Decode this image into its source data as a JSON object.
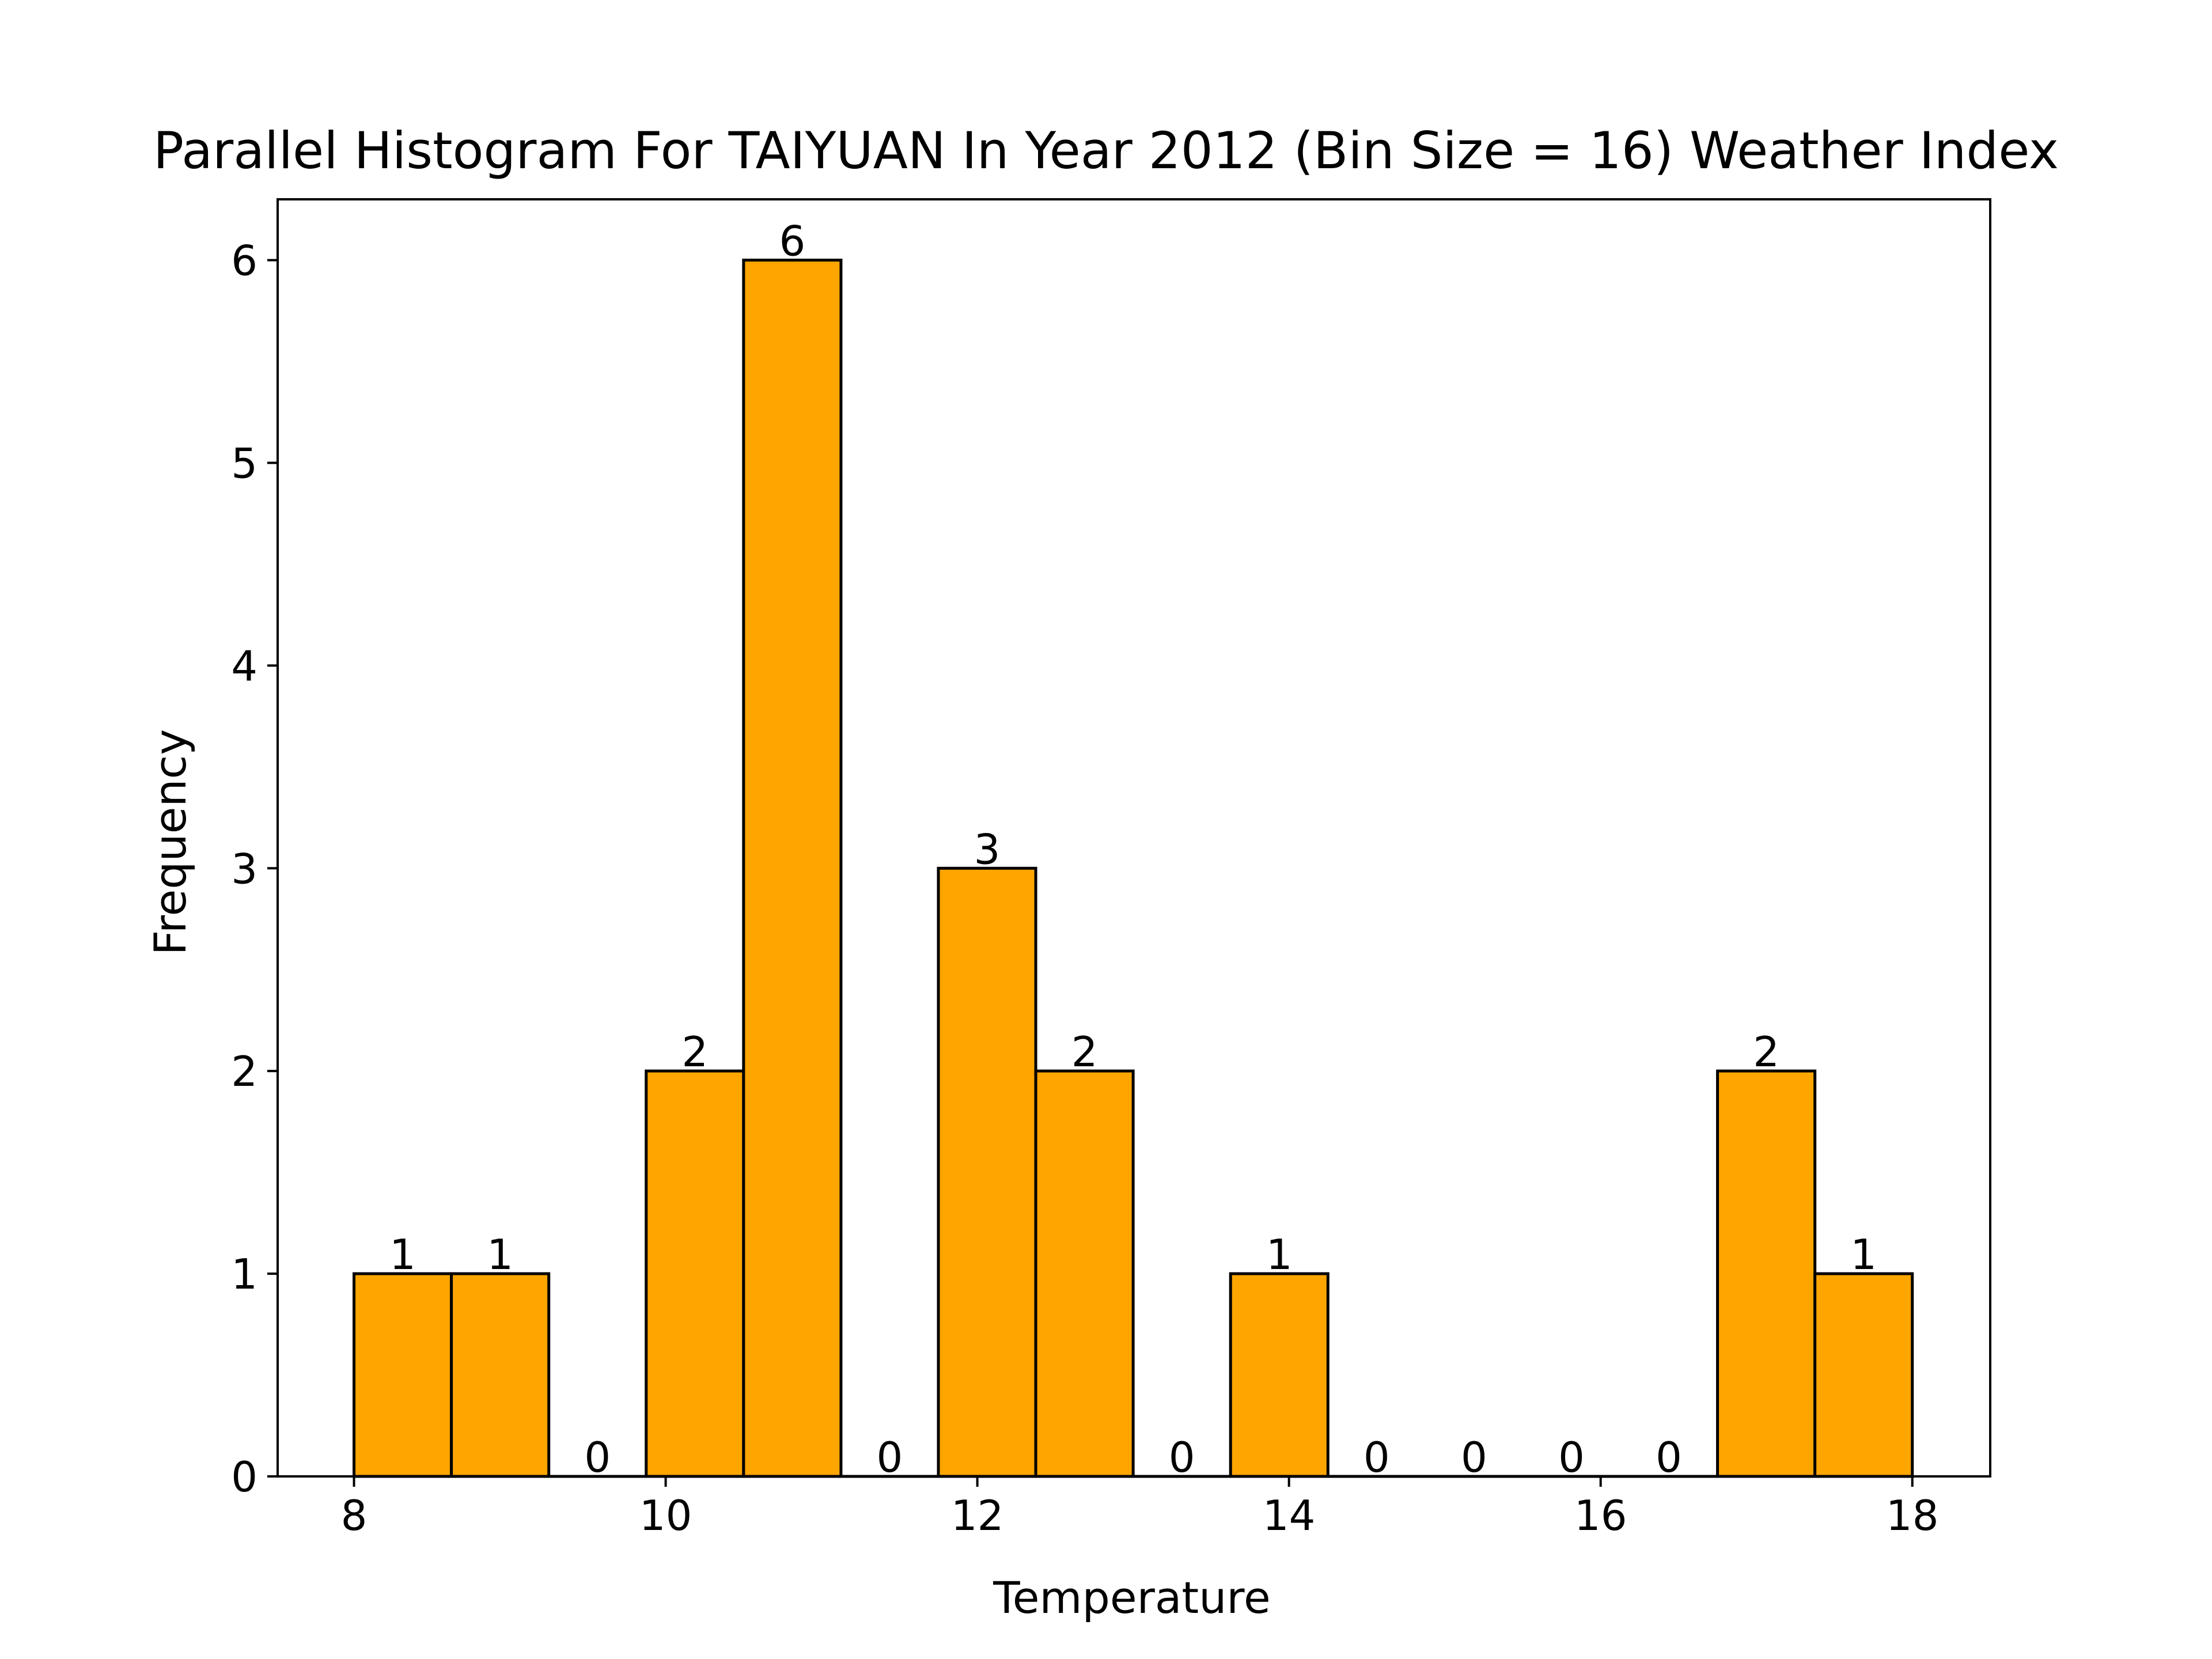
{
  "chart_data": {
    "type": "bar",
    "title": "Parallel Histogram For TAIYUAN In Year 2012 (Bin Size = 16) Weather Index",
    "xlabel": "Temperature",
    "ylabel": "Frequency",
    "xlim": [
      7.51,
      18.5
    ],
    "ylim": [
      0,
      6.3
    ],
    "bin_edges": [
      8.0,
      8.625,
      9.25,
      9.875,
      10.5,
      11.125,
      11.75,
      12.375,
      13.0,
      13.625,
      14.25,
      14.875,
      15.5,
      16.125,
      16.75,
      17.375,
      18.0
    ],
    "values": [
      1,
      1,
      0,
      2,
      6,
      0,
      3,
      2,
      0,
      1,
      0,
      0,
      0,
      0,
      2,
      1
    ],
    "bar_labels": [
      "1",
      "1",
      "0",
      "2",
      "6",
      "0",
      "3",
      "2",
      "0",
      "1",
      "0",
      "0",
      "0",
      "0",
      "2",
      "1"
    ],
    "xticks": [
      8,
      10,
      12,
      14,
      16,
      18
    ],
    "xtick_labels": [
      "8",
      "10",
      "12",
      "14",
      "16",
      "18"
    ],
    "yticks": [
      0,
      1,
      2,
      3,
      4,
      5,
      6
    ],
    "ytick_labels": [
      "0",
      "1",
      "2",
      "3",
      "4",
      "5",
      "6"
    ],
    "grid": false,
    "bar_color": "#FFA500",
    "edge_color": "#000000"
  }
}
